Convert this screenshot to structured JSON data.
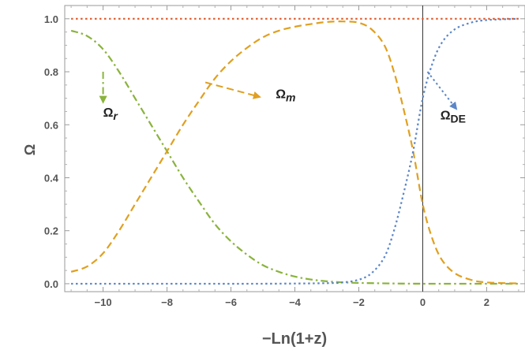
{
  "chart_data": {
    "type": "line",
    "xlabel": "−Ln(1+z)",
    "ylabel": "Ω",
    "xlim": [
      -11.2,
      3.2
    ],
    "ylim": [
      -0.03,
      1.05
    ],
    "x_ticks": [
      -10,
      -8,
      -6,
      -4,
      -2,
      0,
      2
    ],
    "y_ticks": [
      0.0,
      0.2,
      0.4,
      0.6,
      0.8,
      1.0
    ],
    "x_tick_labels": [
      "−10",
      "−8",
      "−6",
      "−4",
      "−2",
      "0",
      "2"
    ],
    "y_tick_labels": [
      "0.0",
      "0.2",
      "0.4",
      "0.6",
      "0.8",
      "1.0"
    ],
    "grid": false,
    "vertical_line_x": 0,
    "series": [
      {
        "name": "Ωr",
        "color": "#8ab33c",
        "style": "dash-dot",
        "points": [
          [
            -11,
            0.955
          ],
          [
            -10.5,
            0.935
          ],
          [
            -10,
            0.885
          ],
          [
            -9.5,
            0.8
          ],
          [
            -9,
            0.7
          ],
          [
            -8.5,
            0.6
          ],
          [
            -8,
            0.5
          ],
          [
            -7.5,
            0.4
          ],
          [
            -7,
            0.31
          ],
          [
            -6.5,
            0.225
          ],
          [
            -6,
            0.16
          ],
          [
            -5.5,
            0.11
          ],
          [
            -5,
            0.07
          ],
          [
            -4.5,
            0.045
          ],
          [
            -4,
            0.027
          ],
          [
            -3.5,
            0.016
          ],
          [
            -3,
            0.009
          ],
          [
            -2.5,
            0.005
          ],
          [
            -2,
            0.003
          ],
          [
            -1,
            0.001
          ],
          [
            0,
            0.0
          ],
          [
            1,
            0.0
          ],
          [
            2,
            0.0
          ],
          [
            3,
            0.0
          ]
        ]
      },
      {
        "name": "Ωm",
        "color": "#e0a020",
        "style": "dashed",
        "points": [
          [
            -11,
            0.045
          ],
          [
            -10.5,
            0.065
          ],
          [
            -10,
            0.115
          ],
          [
            -9.5,
            0.2
          ],
          [
            -9,
            0.3
          ],
          [
            -8.5,
            0.4
          ],
          [
            -8,
            0.5
          ],
          [
            -7.5,
            0.6
          ],
          [
            -7,
            0.69
          ],
          [
            -6.5,
            0.775
          ],
          [
            -6,
            0.84
          ],
          [
            -5.5,
            0.89
          ],
          [
            -5,
            0.93
          ],
          [
            -4.5,
            0.955
          ],
          [
            -4,
            0.97
          ],
          [
            -3.5,
            0.98
          ],
          [
            -3,
            0.988
          ],
          [
            -2.5,
            0.99
          ],
          [
            -2,
            0.985
          ],
          [
            -1.6,
            0.96
          ],
          [
            -1.2,
            0.9
          ],
          [
            -0.9,
            0.8
          ],
          [
            -0.6,
            0.66
          ],
          [
            -0.3,
            0.5
          ],
          [
            0,
            0.3
          ],
          [
            0.3,
            0.17
          ],
          [
            0.6,
            0.09
          ],
          [
            1,
            0.04
          ],
          [
            1.5,
            0.015
          ],
          [
            2,
            0.005
          ],
          [
            3,
            0.001
          ]
        ]
      },
      {
        "name": "ΩDE",
        "color": "#5b86c7",
        "style": "dotted",
        "points": [
          [
            -11,
            0.0
          ],
          [
            -8,
            0.0
          ],
          [
            -5,
            0.0
          ],
          [
            -3,
            0.002
          ],
          [
            -2.5,
            0.005
          ],
          [
            -2,
            0.015
          ],
          [
            -1.6,
            0.04
          ],
          [
            -1.2,
            0.1
          ],
          [
            -0.9,
            0.2
          ],
          [
            -0.6,
            0.34
          ],
          [
            -0.3,
            0.5
          ],
          [
            0,
            0.7
          ],
          [
            0.3,
            0.83
          ],
          [
            0.6,
            0.91
          ],
          [
            1,
            0.96
          ],
          [
            1.5,
            0.985
          ],
          [
            2,
            0.995
          ],
          [
            3,
            1.0
          ]
        ]
      },
      {
        "name": "",
        "color": "#e05a2a",
        "style": "dotted",
        "points": [
          [
            -11,
            1.0
          ],
          [
            3,
            1.0
          ]
        ]
      }
    ],
    "annotations": [
      {
        "name": "annotation-omega-r",
        "main": "Ω",
        "sub": "r",
        "sub_italic": true,
        "tx": -10.0,
        "ty": 0.63,
        "ax0": -10.0,
        "ay0": 0.8,
        "ax1": -10.0,
        "ay1": 0.685,
        "color": "#8ab33c",
        "style": "dash-dot"
      },
      {
        "name": "annotation-omega-m",
        "main": "Ω",
        "sub": "m",
        "sub_italic": true,
        "tx": -4.6,
        "ty": 0.7,
        "ax0": -6.8,
        "ay0": 0.76,
        "ax1": -5.1,
        "ay1": 0.705,
        "color": "#e0a020",
        "style": "dashed"
      },
      {
        "name": "annotation-omega-de",
        "main": "Ω",
        "sub": "DE",
        "sub_italic": false,
        "tx": 0.55,
        "ty": 0.62,
        "ax0": 0.15,
        "ay0": 0.8,
        "ax1": 1.05,
        "ay1": 0.66,
        "color": "#5b86c7",
        "style": "dotted"
      }
    ]
  }
}
